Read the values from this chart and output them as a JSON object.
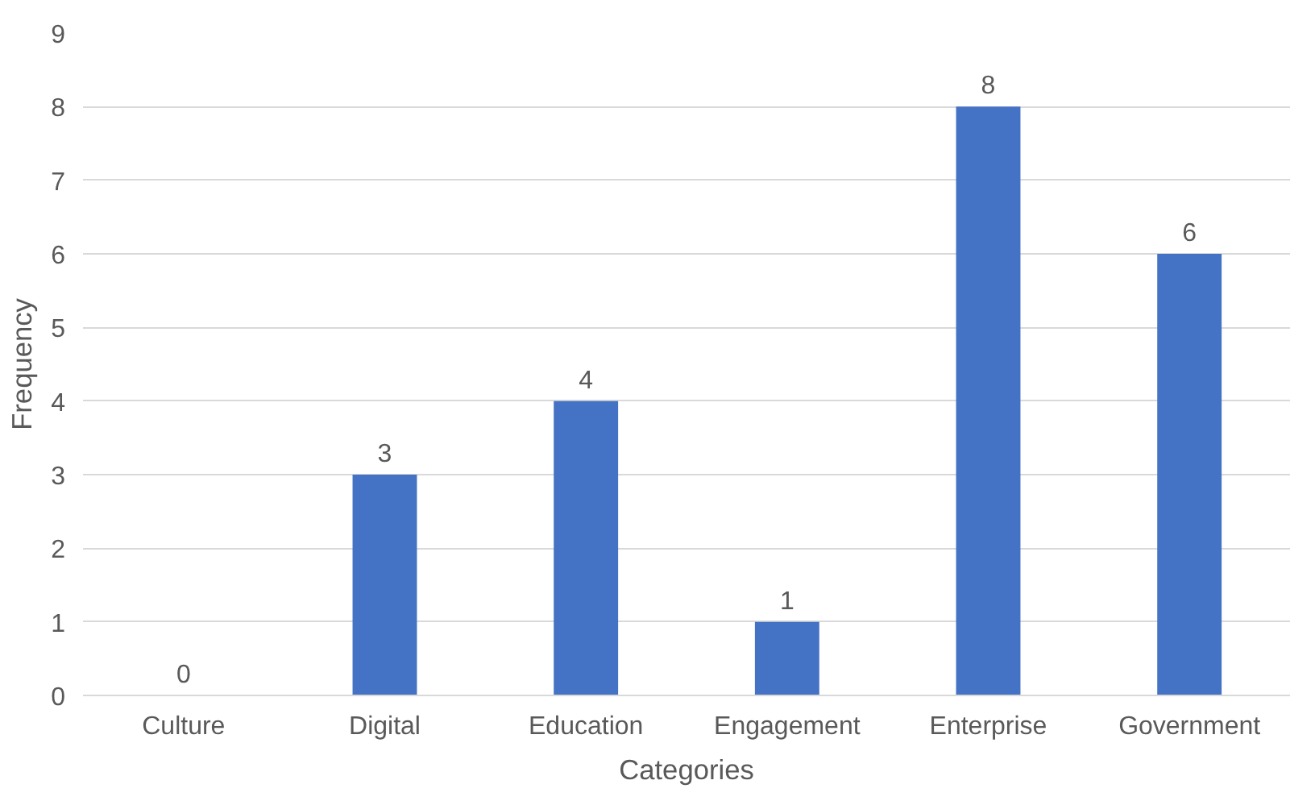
{
  "chart_data": {
    "type": "bar",
    "xlabel": "Categories",
    "ylabel": "Frequency",
    "categories": [
      "Culture",
      "Digital",
      "Education",
      "Engagement",
      "Enterprise",
      "Government"
    ],
    "values": [
      0,
      3,
      4,
      1,
      8,
      6
    ],
    "color": "#4472c4",
    "ylim": [
      0,
      9
    ],
    "yticks": [
      0,
      1,
      2,
      3,
      4,
      5,
      6,
      7,
      8,
      9
    ],
    "grid": "y",
    "data_labels": true
  }
}
